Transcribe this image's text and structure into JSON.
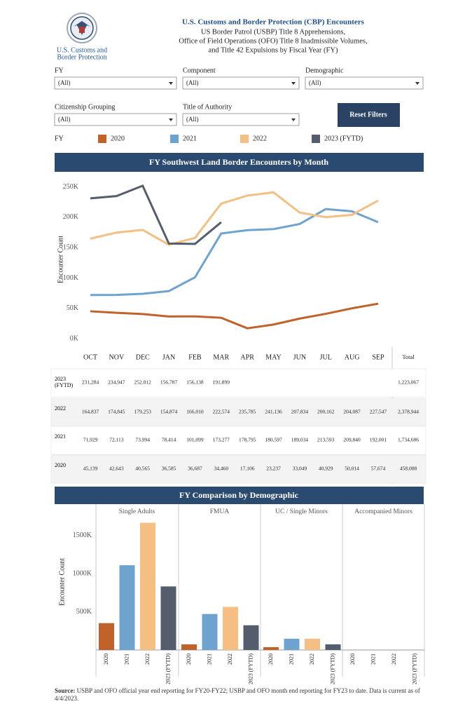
{
  "header": {
    "logo_text": [
      "U.S. Customs and",
      "Border Protection"
    ],
    "title": "U.S. Customs and Border Protection (CBP) Encounters",
    "subtitle": [
      "US Border Patrol (USBP) Title 8 Apprehensions,",
      "Office of Field Operations (OFO) Title 8 Inadmissible Volumes,",
      "and Title 42 Expulsions by Fiscal Year (FY)"
    ]
  },
  "filters": [
    {
      "label": "FY",
      "value": "(All)"
    },
    {
      "label": "Component",
      "value": "(All)"
    },
    {
      "label": "Demographic",
      "value": "(All)"
    },
    {
      "label": "Citizenship Grouping",
      "value": "(All)"
    },
    {
      "label": "Title of Authority",
      "value": "(All)"
    }
  ],
  "reset_button": "Reset Filters",
  "chart_data": [
    {
      "type": "line",
      "title": "FY Southwest Land Border Encounters by Month",
      "legend_title": "FY",
      "y_label": "Encounter Count",
      "total_header": "Total",
      "categories": [
        "OCT",
        "NOV",
        "DEC",
        "JAN",
        "FEB",
        "MAR",
        "APR",
        "MAY",
        "JUN",
        "JUL",
        "AUG",
        "SEP"
      ],
      "series": [
        {
          "name": "2020",
          "color": "#c0622a",
          "values": [
            45139,
            42643,
            40565,
            36585,
            36687,
            34460,
            17106,
            23237,
            33049,
            40929,
            50014,
            57674
          ],
          "value_labels": [
            "45,139",
            "42,643",
            "40,565",
            "36,585",
            "36,687",
            "34,460",
            "17,106",
            "23,237",
            "33,049",
            "40,929",
            "50,014",
            "57,674"
          ],
          "total_label": "458,088"
        },
        {
          "name": "2021",
          "color": "#6fa3cf",
          "values": [
            71929,
            72113,
            73994,
            78414,
            101099,
            173277,
            178795,
            180597,
            189034,
            213593,
            209840,
            192001
          ],
          "value_labels": [
            "71,929",
            "72,113",
            "73,994",
            "78,414",
            "101,099",
            "173,277",
            "178,795",
            "180,597",
            "189,034",
            "213,593",
            "209,840",
            "192,001"
          ],
          "total_label": "1,734,686"
        },
        {
          "name": "2022",
          "color": "#f5be82",
          "values": [
            164837,
            174845,
            179253,
            154874,
            166010,
            222574,
            235785,
            241136,
            207834,
            200162,
            204087,
            227547
          ],
          "value_labels": [
            "164,837",
            "174,845",
            "179,253",
            "154,874",
            "166,010",
            "222,574",
            "235,785",
            "241,136",
            "207,834",
            "200,162",
            "204,087",
            "227,547"
          ],
          "total_label": "2,378,944"
        },
        {
          "name": "2023 (FYTD)",
          "color": "#545d6b",
          "values": [
            231284,
            234947,
            252012,
            156787,
            156138,
            191899,
            null,
            null,
            null,
            null,
            null,
            null
          ],
          "value_labels": [
            "231,284",
            "234,947",
            "252,012",
            "156,787",
            "156,138",
            "191,899",
            null,
            null,
            null,
            null,
            null,
            null
          ],
          "total_label": "1,223,067"
        }
      ],
      "ylim": [
        0,
        260000
      ],
      "yticks": [
        {
          "value": 0,
          "label": "0K"
        },
        {
          "value": 50000,
          "label": "50K"
        },
        {
          "value": 100000,
          "label": "100K"
        },
        {
          "value": 150000,
          "label": "150K"
        },
        {
          "value": 200000,
          "label": "200K"
        },
        {
          "value": 250000,
          "label": "250K"
        }
      ]
    },
    {
      "type": "bar",
      "title": "FY Comparison by Demographic",
      "y_label": "Encounter Count",
      "categories": [
        "Single Adults",
        "FMUA",
        "UC / Single Minors",
        "Accompanied Minors"
      ],
      "series": [
        {
          "name": "2020",
          "color": "#c0622a",
          "values": [
            352000,
            74000,
            37000,
            0
          ]
        },
        {
          "name": "2021",
          "color": "#6fa3cf",
          "values": [
            1111000,
            472000,
            148000,
            0
          ]
        },
        {
          "name": "2022",
          "color": "#f5be82",
          "values": [
            1667000,
            565000,
            148000,
            0
          ]
        },
        {
          "name": "2023 (FYTD)",
          "color": "#545d6b",
          "values": [
            833000,
            324000,
            74000,
            0
          ]
        }
      ],
      "ylim": [
        0,
        1700000
      ],
      "yticks": [
        {
          "value": 500000,
          "label": "500K"
        },
        {
          "value": 1000000,
          "label": "1000K"
        },
        {
          "value": 1500000,
          "label": "1500K"
        }
      ]
    }
  ],
  "source": {
    "label": "Source:",
    "text": "USBP and OFO official year end reporting for FY20-FY22; USBP and OFO month end reporting for FY23 to date. Data is current as of 4/4/2023."
  }
}
